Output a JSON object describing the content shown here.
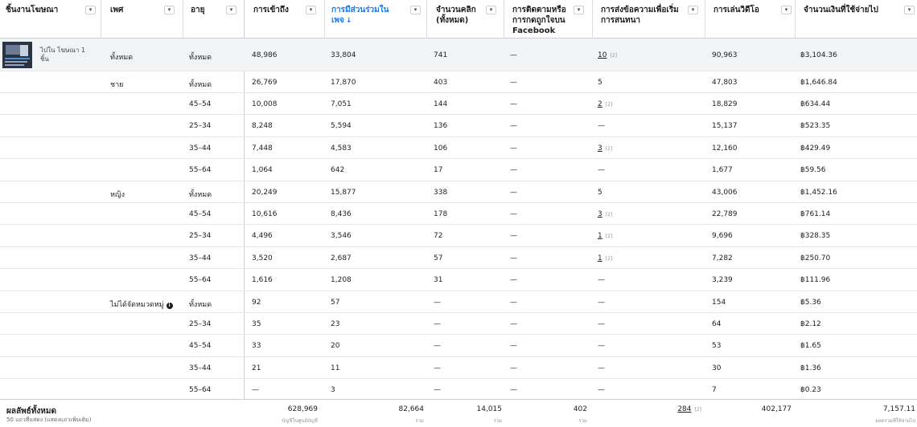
{
  "columns": [
    {
      "label": "ชิ้นงานโฆษณา"
    },
    {
      "label": "เพศ"
    },
    {
      "label": "อายุ"
    },
    {
      "label": "การเข้าถึง"
    },
    {
      "label": "การมีส่วนร่วมในเพจ",
      "sort_arrow": "↓"
    },
    {
      "label": "จำนวนคลิก (ทั้งหมด)"
    },
    {
      "label": "การติดตามหรือการกดถูกใจบน Facebook"
    },
    {
      "label": "การส่งข้อความเพื่อเริ่มการสนทนา"
    },
    {
      "label": "การเล่นวิดีโอ"
    },
    {
      "label": "จำนวนเงินที่ใช้จ่ายไป"
    }
  ],
  "dropdown_glyph": "▾",
  "ad": {
    "name": "ไปใน โฆษณา 1 ชิ้น"
  },
  "info_glyph": "i",
  "rows": [
    {
      "gender": "ทั้งหมด",
      "age": "ทั้งหมด",
      "reach": "48,986",
      "engagement": "33,804",
      "clicks": "741",
      "follows": "—",
      "messages": "10",
      "messages_note": "[2]",
      "video": "90,963",
      "spend": "฿3,104.36"
    },
    {
      "gender": "ชาย",
      "age": "ทั้งหมด",
      "reach": "26,769",
      "engagement": "17,870",
      "clicks": "403",
      "follows": "—",
      "messages": "5",
      "messages_note": "",
      "video": "47,803",
      "spend": "฿1,646.84"
    },
    {
      "gender": "",
      "age": "45–54",
      "reach": "10,008",
      "engagement": "7,051",
      "clicks": "144",
      "follows": "—",
      "messages": "2",
      "messages_note": "[2]",
      "video": "18,829",
      "spend": "฿634.44"
    },
    {
      "gender": "",
      "age": "25–34",
      "reach": "8,248",
      "engagement": "5,594",
      "clicks": "136",
      "follows": "—",
      "messages": "—",
      "messages_note": "",
      "video": "15,137",
      "spend": "฿523.35"
    },
    {
      "gender": "",
      "age": "35–44",
      "reach": "7,448",
      "engagement": "4,583",
      "clicks": "106",
      "follows": "—",
      "messages": "3",
      "messages_note": "[2]",
      "video": "12,160",
      "spend": "฿429.49"
    },
    {
      "gender": "",
      "age": "55–64",
      "reach": "1,064",
      "engagement": "642",
      "clicks": "17",
      "follows": "—",
      "messages": "—",
      "messages_note": "",
      "video": "1,677",
      "spend": "฿59.56"
    },
    {
      "gender": "หญิง",
      "age": "ทั้งหมด",
      "reach": "20,249",
      "engagement": "15,877",
      "clicks": "338",
      "follows": "—",
      "messages": "5",
      "messages_note": "",
      "video": "43,006",
      "spend": "฿1,452.16"
    },
    {
      "gender": "",
      "age": "45–54",
      "reach": "10,616",
      "engagement": "8,436",
      "clicks": "178",
      "follows": "—",
      "messages": "3",
      "messages_note": "[2]",
      "video": "22,789",
      "spend": "฿761.14"
    },
    {
      "gender": "",
      "age": "25–34",
      "reach": "4,496",
      "engagement": "3,546",
      "clicks": "72",
      "follows": "—",
      "messages": "1",
      "messages_note": "[2]",
      "video": "9,696",
      "spend": "฿328.35"
    },
    {
      "gender": "",
      "age": "35–44",
      "reach": "3,520",
      "engagement": "2,687",
      "clicks": "57",
      "follows": "—",
      "messages": "1",
      "messages_note": "[2]",
      "video": "7,282",
      "spend": "฿250.70"
    },
    {
      "gender": "",
      "age": "55–64",
      "reach": "1,616",
      "engagement": "1,208",
      "clicks": "31",
      "follows": "—",
      "messages": "—",
      "messages_note": "",
      "video": "3,239",
      "spend": "฿111.96"
    },
    {
      "gender": "ไม่ได้จัดหมวดหมู่",
      "age": "ทั้งหมด",
      "reach": "92",
      "engagement": "57",
      "clicks": "—",
      "follows": "—",
      "messages": "—",
      "messages_note": "",
      "video": "154",
      "spend": "฿5.36"
    },
    {
      "gender": "",
      "age": "25–34",
      "reach": "35",
      "engagement": "23",
      "clicks": "—",
      "follows": "—",
      "messages": "—",
      "messages_note": "",
      "video": "64",
      "spend": "฿2.12"
    },
    {
      "gender": "",
      "age": "45–54",
      "reach": "33",
      "engagement": "20",
      "clicks": "—",
      "follows": "—",
      "messages": "—",
      "messages_note": "",
      "video": "53",
      "spend": "฿1.65"
    },
    {
      "gender": "",
      "age": "35–44",
      "reach": "21",
      "engagement": "11",
      "clicks": "—",
      "follows": "—",
      "messages": "—",
      "messages_note": "",
      "video": "30",
      "spend": "฿1.36"
    },
    {
      "gender": "",
      "age": "55–64",
      "reach": "—",
      "engagement": "3",
      "clicks": "—",
      "follows": "—",
      "messages": "—",
      "messages_note": "",
      "video": "7",
      "spend": "฿0.23"
    }
  ],
  "footer": {
    "title": "ผลลัพธ์ทั้งหมด",
    "subtitle": "50 แถวที่แสดง (แสดงแถวเพิ่มเติม)",
    "reach": "628,969",
    "reach_sub": "บัญชีในศูนย์บัญชี",
    "engagement": "82,664",
    "engagement_sub": "รวม",
    "clicks": "14,015",
    "clicks_sub": "รวม",
    "follows": "402",
    "follows_sub": "รวม",
    "messages": "284",
    "messages_note": "[2]",
    "video": "402,177",
    "spend": "7,157.11",
    "spend_sub": "ยอดรวมที่ใช้จ่ายไป"
  }
}
